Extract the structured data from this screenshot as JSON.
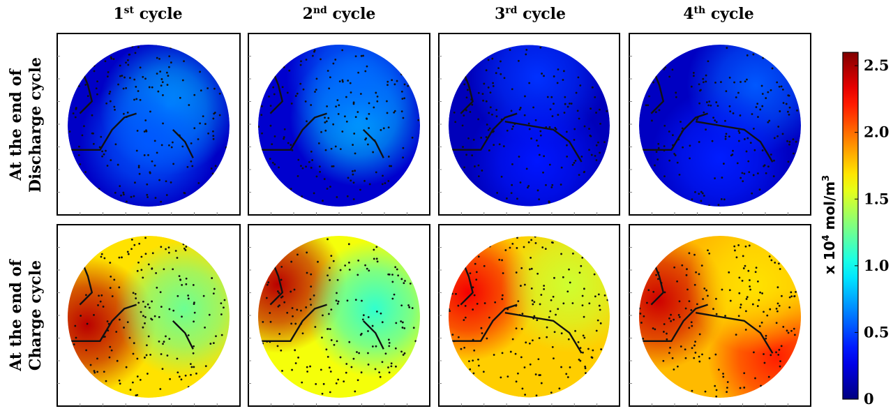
{
  "columns": [
    {
      "base": "1",
      "sup": "st",
      "rest": " cycle"
    },
    {
      "base": "2",
      "sup": "nd",
      "rest": " cycle"
    },
    {
      "base": "3",
      "sup": "rd",
      "rest": " cycle"
    },
    {
      "base": "4",
      "sup": "th",
      "rest": " cycle"
    }
  ],
  "rows": [
    {
      "line1": "At the end of",
      "line2": "Discharge cycle"
    },
    {
      "line1": "At the end of",
      "line2": "Charge cycle"
    }
  ],
  "colorbar": {
    "unit_prefix": "x 10",
    "unit_exp": "4",
    "unit_suffix": " mol/m",
    "unit_exp2": "3",
    "ticks": [
      "0",
      "0.5",
      "1.0",
      "1.5",
      "2.0",
      "2.5"
    ],
    "tick_values": [
      0,
      0.5,
      1.0,
      1.5,
      2.0,
      2.5
    ],
    "range": [
      0,
      2.6
    ],
    "colormap": "jet"
  },
  "chart_data": {
    "type": "heatmap",
    "description_units": "x 10^4 mol/m^3",
    "panels": [
      {
        "row": "discharge",
        "column": "1st cycle",
        "hotspots": [
          {
            "u": 0.62,
            "v": 0.38,
            "value": 0.75
          },
          {
            "u": 0.5,
            "v": 0.6,
            "value": 0.55
          }
        ],
        "background": 0.18
      },
      {
        "row": "discharge",
        "column": "2nd cycle",
        "hotspots": [
          {
            "u": 0.62,
            "v": 0.45,
            "value": 0.8
          },
          {
            "u": 0.6,
            "v": 0.2,
            "value": 0.6
          }
        ],
        "background": 0.2
      },
      {
        "row": "discharge",
        "column": "3rd cycle",
        "hotspots": [
          {
            "u": 0.55,
            "v": 0.2,
            "value": 0.45
          },
          {
            "u": 0.55,
            "v": 0.72,
            "value": 0.38
          }
        ],
        "background": 0.15
      },
      {
        "row": "discharge",
        "column": "4th cycle",
        "hotspots": [
          {
            "u": 0.72,
            "v": 0.25,
            "value": 0.55
          },
          {
            "u": 0.5,
            "v": 0.7,
            "value": 0.4
          }
        ],
        "background": 0.17
      },
      {
        "row": "charge",
        "column": "1st cycle",
        "hotspots": [
          {
            "u": 0.12,
            "v": 0.55,
            "value": 2.45
          },
          {
            "u": 0.72,
            "v": 0.45,
            "value": 1.25
          }
        ],
        "background": 1.7
      },
      {
        "row": "charge",
        "column": "2nd cycle",
        "hotspots": [
          {
            "u": 0.12,
            "v": 0.3,
            "value": 2.45
          },
          {
            "u": 0.72,
            "v": 0.45,
            "value": 1.1
          }
        ],
        "background": 1.6
      },
      {
        "row": "charge",
        "column": "3rd cycle",
        "hotspots": [
          {
            "u": 0.12,
            "v": 0.35,
            "value": 2.3
          },
          {
            "u": 0.75,
            "v": 0.3,
            "value": 1.5
          }
        ],
        "background": 1.75
      },
      {
        "row": "charge",
        "column": "4th cycle",
        "hotspots": [
          {
            "u": 0.12,
            "v": 0.4,
            "value": 2.4
          },
          {
            "u": 0.85,
            "v": 0.75,
            "value": 2.2
          },
          {
            "u": 0.72,
            "v": 0.3,
            "value": 1.7
          }
        ],
        "background": 1.8
      }
    ]
  }
}
